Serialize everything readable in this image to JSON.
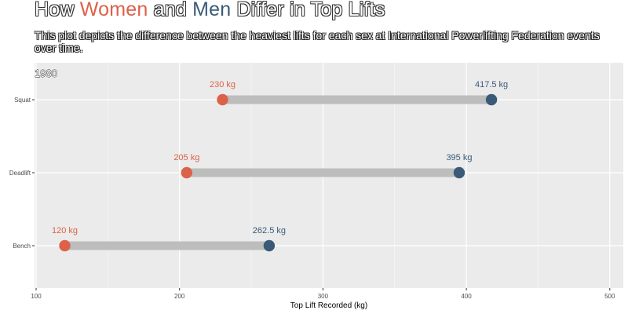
{
  "title": {
    "part1": "How ",
    "women": "Women",
    "part2": " and ",
    "men": "Men",
    "part3": " Differ in Top Lifts"
  },
  "subtitle": "This plot depicts the difference between the heaviest lifts for each sex at International Powerlifting Federation events over time.",
  "colors": {
    "women": "#dc6149",
    "men": "#3b5a78",
    "segment": "#bdbdbd",
    "panel": "#ebebeb",
    "grid": "#ffffff"
  },
  "chart_data": {
    "type": "dumbbell",
    "year_label": "1980",
    "categories": [
      "Squat",
      "Deadlift",
      "Bench"
    ],
    "series": [
      {
        "key": "women",
        "values": [
          230,
          205,
          120
        ],
        "labels": [
          "230 kg",
          "205 kg",
          "120 kg"
        ]
      },
      {
        "key": "men",
        "values": [
          417.5,
          395,
          262.5
        ],
        "labels": [
          "417.5 kg",
          "395 kg",
          "262.5 kg"
        ]
      }
    ],
    "xlabel": "Top Lift Recorded (kg)",
    "xlim": [
      100,
      505
    ],
    "xticks": [
      100,
      200,
      300,
      400,
      500
    ],
    "grid": true
  }
}
